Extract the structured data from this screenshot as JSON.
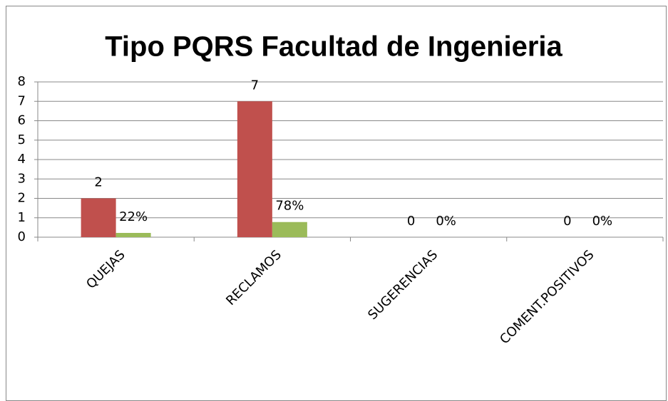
{
  "chart_data": {
    "type": "bar",
    "title": "Tipo PQRS Facultad de Ingenieria",
    "categories": [
      "QUEJAS",
      "RECLAMOS",
      "SUGERENCIAS",
      "COMENT.POSITIVOS"
    ],
    "series": [
      {
        "color": "#c0504d",
        "values": [
          2,
          7,
          0,
          0
        ]
      },
      {
        "color": "#9bbb59",
        "values": [
          0.22,
          0.78,
          0,
          0
        ],
        "value_labels": [
          "22%",
          "78%",
          "0%",
          "0%"
        ]
      }
    ],
    "ylim": [
      0,
      8
    ],
    "yticks": [
      0,
      1,
      2,
      3,
      4,
      5,
      6,
      7,
      8
    ],
    "grid": true
  }
}
